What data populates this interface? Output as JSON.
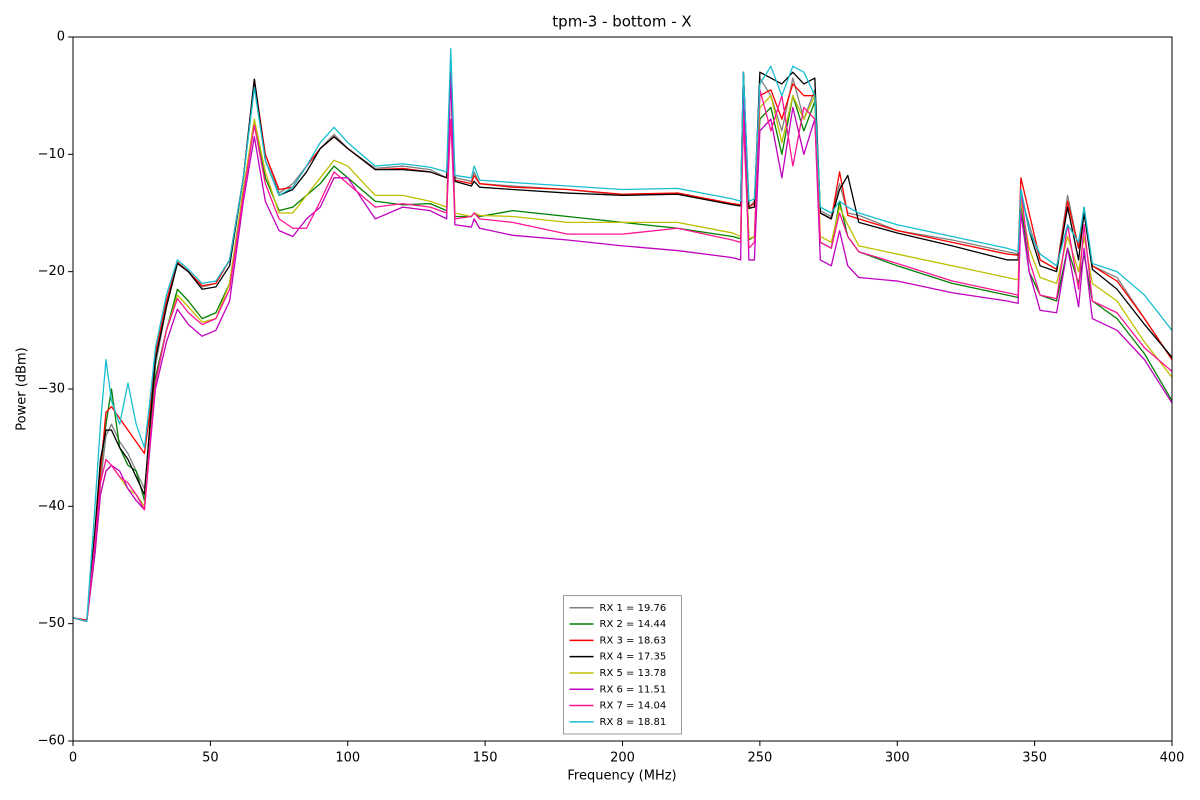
{
  "chart_data": {
    "type": "line",
    "title": "tpm-3 - bottom - X",
    "x_label": "Frequency (MHz)",
    "y_label": "Power (dBm)",
    "x": [
      0,
      5,
      8,
      10,
      12,
      14,
      17,
      20,
      23,
      26,
      28,
      30,
      34,
      38,
      42,
      47,
      52,
      57,
      62,
      66,
      70,
      75,
      80,
      85,
      90,
      95,
      100,
      110,
      120,
      130,
      136,
      137.5,
      139,
      145,
      146,
      148,
      160,
      180,
      200,
      220,
      240,
      243,
      244,
      246,
      248,
      250,
      254,
      258,
      262,
      266,
      270,
      272,
      276,
      279,
      282,
      286,
      300,
      320,
      340,
      344,
      345,
      348,
      352,
      358,
      362,
      366,
      368,
      371,
      380,
      390,
      400
    ],
    "xlim": [
      0,
      400
    ],
    "xticks": [
      0,
      50,
      100,
      150,
      200,
      250,
      300,
      350,
      400
    ],
    "ylim": [
      -60,
      0
    ],
    "yticks": [
      {
        "value": -60,
        "label": "−60"
      },
      {
        "value": -50,
        "label": "−50"
      },
      {
        "value": -40,
        "label": "−40"
      },
      {
        "value": -30,
        "label": "−30"
      },
      {
        "value": -20,
        "label": "−20"
      },
      {
        "value": -10,
        "label": "−10"
      },
      0
    ],
    "grid": false,
    "legend": "lower center",
    "series": [
      {
        "name": "RX 1 = 19.76",
        "color": "#808080",
        "values": [
          -49.5,
          -49.8,
          -44,
          -38,
          -34,
          -33,
          -34.5,
          -35.5,
          -37,
          -38.5,
          -34,
          -28,
          -23,
          -19.2,
          -20,
          -21.3,
          -21,
          -19,
          -12,
          -4.2,
          -10,
          -13.3,
          -12.5,
          -11,
          -9.5,
          -8.3,
          -9.5,
          -11.2,
          -11,
          -11.3,
          -12,
          -1.5,
          -12,
          -12.3,
          -11.5,
          -12.5,
          -12.7,
          -13,
          -13.5,
          -13.3,
          -14.2,
          -14.3,
          -3,
          -14.5,
          -14,
          -3.5,
          -5,
          -8,
          -3.5,
          -7,
          -4.5,
          -14.8,
          -15.3,
          -12.5,
          -15,
          -15.2,
          -16.5,
          -17.3,
          -18.3,
          -18.5,
          -13.5,
          -16,
          -19,
          -19.8,
          -13.5,
          -18,
          -14.5,
          -19.5,
          -20.5,
          -24,
          -27.5
        ]
      },
      {
        "name": "RX 2 = 14.44",
        "color": "#008000",
        "values": [
          -49.5,
          -49.8,
          -43,
          -37,
          -33,
          -30,
          -35,
          -36.5,
          -37,
          -39.5,
          -34,
          -29,
          -25,
          -21.5,
          -22.5,
          -24,
          -23.5,
          -21,
          -13,
          -7.5,
          -12,
          -14.8,
          -14.5,
          -13.5,
          -12.5,
          -11,
          -12,
          -14,
          -14.3,
          -14.2,
          -14.8,
          -3,
          -15.3,
          -15.3,
          -15,
          -15.3,
          -14.8,
          -15.3,
          -15.8,
          -16.3,
          -17,
          -17.2,
          -5,
          -17.3,
          -17,
          -7,
          -6,
          -10,
          -5,
          -8,
          -5.5,
          -17.5,
          -18,
          -14,
          -17,
          -18.3,
          -19.5,
          -21,
          -22,
          -22.2,
          -14,
          -20,
          -22,
          -22.5,
          -18,
          -21,
          -18.5,
          -22.5,
          -24,
          -27,
          -31
        ]
      },
      {
        "name": "RX 3 = 18.63",
        "color": "#ff0000",
        "values": [
          -49.5,
          -49.7,
          -43,
          -37,
          -32,
          -31.5,
          -32.5,
          -33.5,
          -34.5,
          -35.5,
          -32,
          -27,
          -22.5,
          -19.2,
          -20,
          -21.2,
          -21,
          -19,
          -12,
          -3.6,
          -10,
          -13,
          -12.8,
          -11,
          -9.5,
          -8.5,
          -9.5,
          -11.3,
          -11.2,
          -11.5,
          -12,
          -3,
          -12.2,
          -12.5,
          -11.8,
          -12.5,
          -12.8,
          -13,
          -13.4,
          -13.3,
          -14.2,
          -14.3,
          -3,
          -14.5,
          -14.2,
          -5,
          -4.5,
          -7,
          -4,
          -5,
          -5,
          -15,
          -15.5,
          -11.5,
          -15.2,
          -15.5,
          -16.5,
          -17.5,
          -18.5,
          -18.6,
          -12,
          -15,
          -19,
          -19.8,
          -14,
          -18,
          -15,
          -19.5,
          -20.8,
          -24,
          -27.5
        ]
      },
      {
        "name": "RX 4 = 17.35",
        "color": "#000000",
        "values": [
          -49.5,
          -49.8,
          -42,
          -36,
          -33.5,
          -33.5,
          -35,
          -36,
          -37.5,
          -39,
          -33,
          -27.5,
          -23,
          -19.3,
          -20,
          -21.5,
          -21.3,
          -19.5,
          -12,
          -3.6,
          -10.5,
          -13.5,
          -13,
          -11.5,
          -9.5,
          -8.5,
          -9.5,
          -11.3,
          -11.3,
          -11.5,
          -12,
          -3,
          -12.3,
          -12.7,
          -12.3,
          -12.8,
          -13,
          -13.3,
          -13.5,
          -13.4,
          -14.3,
          -14.4,
          -3,
          -14.6,
          -14.5,
          -3,
          -3.5,
          -4,
          -3,
          -4,
          -3.5,
          -15,
          -15.5,
          -13,
          -11.8,
          -15.8,
          -16.7,
          -17.8,
          -19,
          -19,
          -13,
          -16.5,
          -19.5,
          -20,
          -14.5,
          -19,
          -15,
          -19.8,
          -21.5,
          -24.5,
          -27.3
        ]
      },
      {
        "name": "RX 5 = 13.78",
        "color": "#bfbf00",
        "values": [
          -49.5,
          -49.8,
          -44,
          -39,
          -37,
          -36.5,
          -37.5,
          -38.5,
          -39,
          -40,
          -34.5,
          -29.5,
          -25,
          -22,
          -23,
          -24.3,
          -24,
          -21,
          -13,
          -7,
          -11.5,
          -15,
          -15,
          -13.5,
          -12,
          -10.5,
          -11,
          -13.5,
          -13.5,
          -14,
          -14.5,
          -3,
          -15,
          -15.3,
          -15,
          -15.2,
          -15.3,
          -15.8,
          -15.8,
          -15.8,
          -16.7,
          -17,
          -5,
          -17.2,
          -17,
          -6,
          -5,
          -9,
          -5,
          -7,
          -5,
          -17,
          -17.5,
          -14.5,
          -16,
          -17.8,
          -18.5,
          -19.5,
          -20.5,
          -20.7,
          -14,
          -18,
          -20.5,
          -21,
          -17,
          -20,
          -17,
          -21,
          -22.5,
          -26,
          -29
        ]
      },
      {
        "name": "RX 6 = 11.51",
        "color": "#bf00bf",
        "values": [
          -49.5,
          -49.8,
          -44,
          -39,
          -37,
          -36.5,
          -37,
          -38.5,
          -39.5,
          -40.3,
          -35,
          -30,
          -26,
          -23.2,
          -24.5,
          -25.5,
          -25,
          -22.5,
          -14,
          -8.5,
          -14,
          -16.5,
          -17,
          -15.5,
          -14.5,
          -12,
          -12,
          -15.5,
          -14.5,
          -14.8,
          -15.5,
          -3,
          -16,
          -16.2,
          -15.5,
          -16.3,
          -16.9,
          -17.3,
          -17.8,
          -18.2,
          -18.8,
          -19,
          -4,
          -19,
          -19,
          -8,
          -7,
          -12,
          -6,
          -10,
          -7,
          -19,
          -19.5,
          -16.5,
          -19.5,
          -20.5,
          -20.8,
          -21.8,
          -22.5,
          -22.7,
          -15,
          -20,
          -23.3,
          -23.5,
          -18,
          -23,
          -18,
          -24,
          -25,
          -27.5,
          -31.2
        ]
      },
      {
        "name": "RX 7 = 14.04",
        "color": "#ff1493",
        "values": [
          -49.5,
          -49.8,
          -43,
          -38,
          -36,
          -36.5,
          -37.5,
          -38,
          -39,
          -40.3,
          -34.5,
          -29.5,
          -25,
          -22.3,
          -23.5,
          -24.5,
          -24,
          -21.5,
          -13.5,
          -7.5,
          -12.5,
          -15.5,
          -16.3,
          -16.3,
          -14,
          -11.5,
          -12.5,
          -14.5,
          -14.2,
          -14.5,
          -15,
          -7,
          -15.5,
          -15.3,
          -15,
          -15.5,
          -15.8,
          -16.8,
          -16.8,
          -16.3,
          -17.3,
          -17.5,
          -7,
          -18,
          -17.5,
          -4.5,
          -8,
          -5,
          -11,
          -6,
          -7,
          -17.5,
          -18,
          -15,
          -17,
          -18.3,
          -19.3,
          -20.8,
          -21.8,
          -22,
          -13,
          -19,
          -22,
          -22.3,
          -16,
          -21.5,
          -16,
          -22.5,
          -23.5,
          -26.5,
          -28.5
        ]
      },
      {
        "name": "RX 8 = 18.81",
        "color": "#17becf",
        "values": [
          -49.5,
          -49.8,
          -40,
          -33,
          -27.5,
          -31,
          -33,
          -29.5,
          -33,
          -35,
          -31,
          -26.5,
          -22,
          -19,
          -19.8,
          -21,
          -20.8,
          -19,
          -12,
          -4.3,
          -10.5,
          -13.5,
          -12.8,
          -11,
          -9,
          -7.7,
          -9,
          -11,
          -10.8,
          -11.1,
          -11.5,
          -1,
          -11.8,
          -12,
          -11,
          -12.2,
          -12.4,
          -12.7,
          -13,
          -12.9,
          -13.8,
          -14,
          -3,
          -14,
          -13.8,
          -4,
          -2.5,
          -5,
          -2.5,
          -3,
          -5,
          -14.5,
          -15,
          -14,
          -14.5,
          -15,
          -16,
          -17,
          -18,
          -18.3,
          -13,
          -16.5,
          -18.5,
          -19.5,
          -16,
          -17.5,
          -14.5,
          -19.3,
          -20,
          -22,
          -25
        ]
      }
    ]
  }
}
